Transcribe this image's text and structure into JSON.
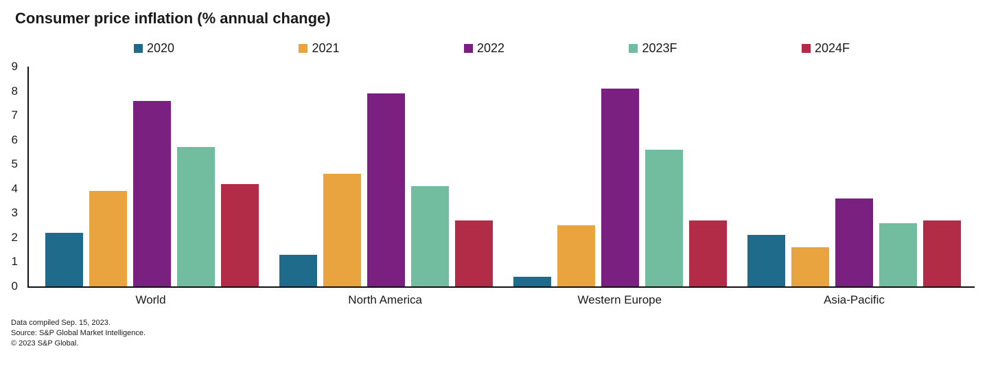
{
  "title": "Consumer price inflation (% annual change)",
  "footer": {
    "line1": "Data compiled Sep. 15, 2023.",
    "line2": "Source: S&P Global Market Intelligence.",
    "line3": "© 2023 S&P Global."
  },
  "chart_data": {
    "type": "bar",
    "title": "Consumer price inflation (% annual change)",
    "categories": [
      "World",
      "North America",
      "Western Europe",
      "Asia-Pacific"
    ],
    "series": [
      {
        "name": "2020",
        "color": "#1e6b8c",
        "values": [
          2.2,
          1.3,
          0.4,
          2.1
        ]
      },
      {
        "name": "2021",
        "color": "#eaa43f",
        "values": [
          3.9,
          4.6,
          2.5,
          1.6
        ]
      },
      {
        "name": "2022",
        "color": "#792081",
        "values": [
          7.6,
          7.9,
          8.1,
          3.6
        ]
      },
      {
        "name": "2023F",
        "color": "#72bd9f",
        "values": [
          5.7,
          4.1,
          5.6,
          2.6
        ]
      },
      {
        "name": "2024F",
        "color": "#b22c48",
        "values": [
          4.2,
          2.7,
          2.7,
          2.7
        ]
      }
    ],
    "xlabel": "",
    "ylabel": "",
    "ylim": [
      0,
      9
    ],
    "yticks": [
      0,
      1,
      2,
      3,
      4,
      5,
      6,
      7,
      8,
      9
    ],
    "grid": false,
    "legend_position": "top"
  }
}
